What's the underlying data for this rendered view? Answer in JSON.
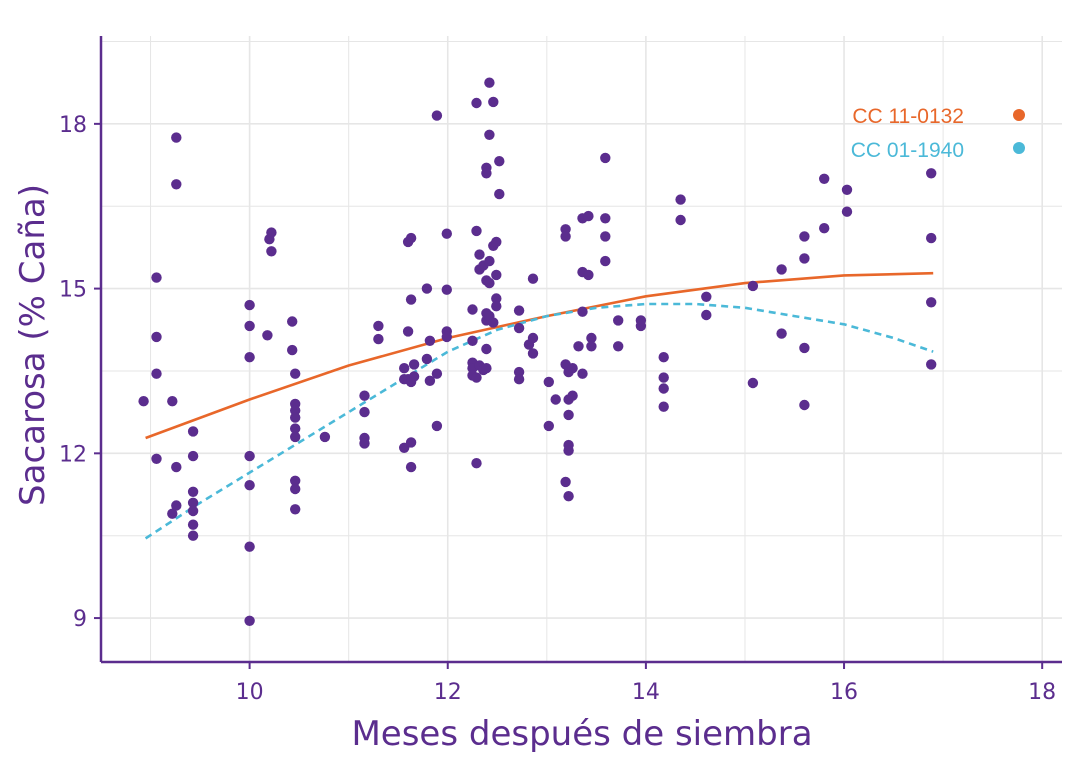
{
  "chart_data": {
    "type": "scatter",
    "xlabel": "Meses después de siembra",
    "ylabel": "Sacarosa (% Caña)",
    "xlim": [
      8.5,
      18.2
    ],
    "ylim": [
      8.2,
      19.6
    ],
    "xticks": [
      10,
      12,
      14,
      16,
      18
    ],
    "yticks": [
      9,
      12,
      15,
      18
    ],
    "x_minor_grid": [
      9,
      11,
      13,
      15,
      17
    ],
    "y_minor_grid": [
      10.5,
      13.5,
      16.5,
      19.5
    ],
    "grid": true,
    "legend_position": "top-right",
    "colors": {
      "axis": "#5b2d8e",
      "points": "#5b2d8e",
      "grid": "#e6e6e6"
    },
    "fit_lines": [
      {
        "name": "CC  11-0132",
        "color": "#e8672a",
        "style": "solid",
        "x": [
          8.95,
          10,
          11,
          12,
          13,
          14,
          15,
          16,
          16.9
        ],
        "y": [
          12.28,
          12.98,
          13.6,
          14.1,
          14.5,
          14.86,
          15.1,
          15.24,
          15.28
        ]
      },
      {
        "name": "CC 01-1940",
        "color": "#4bb9d8",
        "style": "dashed",
        "x": [
          8.95,
          9.5,
          10,
          10.5,
          11,
          11.5,
          12,
          12.5,
          13,
          13.5,
          14,
          14.5,
          15,
          15.5,
          16,
          16.5,
          16.9
        ],
        "y": [
          10.45,
          11.1,
          11.65,
          12.2,
          12.75,
          13.3,
          13.85,
          14.25,
          14.5,
          14.65,
          14.72,
          14.72,
          14.65,
          14.5,
          14.35,
          14.1,
          13.85
        ]
      }
    ],
    "points": [
      {
        "x": 8.93,
        "y": 12.95
      },
      {
        "x": 9.06,
        "y": 15.2
      },
      {
        "x": 9.06,
        "y": 14.12
      },
      {
        "x": 9.06,
        "y": 13.45
      },
      {
        "x": 9.06,
        "y": 11.9
      },
      {
        "x": 9.22,
        "y": 12.95
      },
      {
        "x": 9.22,
        "y": 10.9
      },
      {
        "x": 9.26,
        "y": 17.75
      },
      {
        "x": 9.26,
        "y": 16.9
      },
      {
        "x": 9.26,
        "y": 11.75
      },
      {
        "x": 9.26,
        "y": 11.05
      },
      {
        "x": 9.43,
        "y": 12.4
      },
      {
        "x": 9.43,
        "y": 11.95
      },
      {
        "x": 9.43,
        "y": 11.3
      },
      {
        "x": 9.43,
        "y": 11.1
      },
      {
        "x": 9.43,
        "y": 10.95
      },
      {
        "x": 9.43,
        "y": 10.7
      },
      {
        "x": 9.43,
        "y": 10.5
      },
      {
        "x": 10.0,
        "y": 14.7
      },
      {
        "x": 10.0,
        "y": 14.32
      },
      {
        "x": 10.0,
        "y": 13.75
      },
      {
        "x": 10.0,
        "y": 11.95
      },
      {
        "x": 10.0,
        "y": 11.42
      },
      {
        "x": 10.0,
        "y": 10.3
      },
      {
        "x": 10.0,
        "y": 8.95
      },
      {
        "x": 10.18,
        "y": 14.15
      },
      {
        "x": 10.2,
        "y": 15.9
      },
      {
        "x": 10.22,
        "y": 16.02
      },
      {
        "x": 10.22,
        "y": 15.68
      },
      {
        "x": 10.43,
        "y": 14.4
      },
      {
        "x": 10.43,
        "y": 13.88
      },
      {
        "x": 10.46,
        "y": 13.45
      },
      {
        "x": 10.46,
        "y": 12.9
      },
      {
        "x": 10.46,
        "y": 12.78
      },
      {
        "x": 10.46,
        "y": 12.65
      },
      {
        "x": 10.46,
        "y": 12.45
      },
      {
        "x": 10.46,
        "y": 12.3
      },
      {
        "x": 10.46,
        "y": 11.5
      },
      {
        "x": 10.46,
        "y": 11.35
      },
      {
        "x": 10.46,
        "y": 10.98
      },
      {
        "x": 10.76,
        "y": 12.3
      },
      {
        "x": 11.16,
        "y": 13.05
      },
      {
        "x": 11.16,
        "y": 12.75
      },
      {
        "x": 11.16,
        "y": 12.28
      },
      {
        "x": 11.16,
        "y": 12.18
      },
      {
        "x": 11.3,
        "y": 14.32
      },
      {
        "x": 11.3,
        "y": 14.08
      },
      {
        "x": 11.56,
        "y": 13.55
      },
      {
        "x": 11.56,
        "y": 13.35
      },
      {
        "x": 11.56,
        "y": 12.1
      },
      {
        "x": 11.6,
        "y": 15.85
      },
      {
        "x": 11.6,
        "y": 14.22
      },
      {
        "x": 11.6,
        "y": 13.35
      },
      {
        "x": 11.63,
        "y": 15.92
      },
      {
        "x": 11.63,
        "y": 14.8
      },
      {
        "x": 11.63,
        "y": 13.3
      },
      {
        "x": 11.63,
        "y": 12.2
      },
      {
        "x": 11.63,
        "y": 11.75
      },
      {
        "x": 11.66,
        "y": 13.62
      },
      {
        "x": 11.66,
        "y": 13.4
      },
      {
        "x": 11.79,
        "y": 15.0
      },
      {
        "x": 11.79,
        "y": 13.72
      },
      {
        "x": 11.82,
        "y": 14.05
      },
      {
        "x": 11.82,
        "y": 13.32
      },
      {
        "x": 11.89,
        "y": 18.15
      },
      {
        "x": 11.89,
        "y": 13.45
      },
      {
        "x": 11.89,
        "y": 12.5
      },
      {
        "x": 11.99,
        "y": 16.0
      },
      {
        "x": 11.99,
        "y": 14.98
      },
      {
        "x": 11.99,
        "y": 14.22
      },
      {
        "x": 11.99,
        "y": 14.12
      },
      {
        "x": 12.25,
        "y": 14.62
      },
      {
        "x": 12.25,
        "y": 14.05
      },
      {
        "x": 12.25,
        "y": 13.65
      },
      {
        "x": 12.25,
        "y": 13.55
      },
      {
        "x": 12.25,
        "y": 13.42
      },
      {
        "x": 12.29,
        "y": 18.38
      },
      {
        "x": 12.29,
        "y": 16.05
      },
      {
        "x": 12.29,
        "y": 13.38
      },
      {
        "x": 12.29,
        "y": 11.82
      },
      {
        "x": 12.32,
        "y": 15.62
      },
      {
        "x": 12.32,
        "y": 15.35
      },
      {
        "x": 12.32,
        "y": 13.6
      },
      {
        "x": 12.36,
        "y": 15.42
      },
      {
        "x": 12.36,
        "y": 13.52
      },
      {
        "x": 12.39,
        "y": 17.2
      },
      {
        "x": 12.39,
        "y": 17.1
      },
      {
        "x": 12.39,
        "y": 15.15
      },
      {
        "x": 12.39,
        "y": 14.55
      },
      {
        "x": 12.39,
        "y": 14.42
      },
      {
        "x": 12.39,
        "y": 13.9
      },
      {
        "x": 12.39,
        "y": 13.55
      },
      {
        "x": 12.42,
        "y": 18.75
      },
      {
        "x": 12.42,
        "y": 17.8
      },
      {
        "x": 12.42,
        "y": 15.5
      },
      {
        "x": 12.42,
        "y": 15.1
      },
      {
        "x": 12.42,
        "y": 14.5
      },
      {
        "x": 12.46,
        "y": 18.4
      },
      {
        "x": 12.46,
        "y": 15.78
      },
      {
        "x": 12.46,
        "y": 14.38
      },
      {
        "x": 12.49,
        "y": 15.85
      },
      {
        "x": 12.49,
        "y": 15.25
      },
      {
        "x": 12.49,
        "y": 14.82
      },
      {
        "x": 12.49,
        "y": 14.68
      },
      {
        "x": 12.52,
        "y": 17.32
      },
      {
        "x": 12.52,
        "y": 16.72
      },
      {
        "x": 12.72,
        "y": 14.6
      },
      {
        "x": 12.72,
        "y": 14.28
      },
      {
        "x": 12.72,
        "y": 13.48
      },
      {
        "x": 12.72,
        "y": 13.35
      },
      {
        "x": 12.82,
        "y": 13.98
      },
      {
        "x": 12.86,
        "y": 15.18
      },
      {
        "x": 12.86,
        "y": 14.1
      },
      {
        "x": 12.86,
        "y": 13.82
      },
      {
        "x": 13.02,
        "y": 13.3
      },
      {
        "x": 13.02,
        "y": 12.5
      },
      {
        "x": 13.09,
        "y": 12.98
      },
      {
        "x": 13.19,
        "y": 16.08
      },
      {
        "x": 13.19,
        "y": 15.95
      },
      {
        "x": 13.19,
        "y": 13.62
      },
      {
        "x": 13.19,
        "y": 11.48
      },
      {
        "x": 13.22,
        "y": 13.48
      },
      {
        "x": 13.22,
        "y": 12.98
      },
      {
        "x": 13.22,
        "y": 12.7
      },
      {
        "x": 13.22,
        "y": 12.15
      },
      {
        "x": 13.22,
        "y": 12.05
      },
      {
        "x": 13.22,
        "y": 11.22
      },
      {
        "x": 13.26,
        "y": 13.55
      },
      {
        "x": 13.26,
        "y": 13.05
      },
      {
        "x": 13.32,
        "y": 13.95
      },
      {
        "x": 13.36,
        "y": 16.28
      },
      {
        "x": 13.36,
        "y": 15.3
      },
      {
        "x": 13.36,
        "y": 14.58
      },
      {
        "x": 13.36,
        "y": 13.45
      },
      {
        "x": 13.42,
        "y": 16.32
      },
      {
        "x": 13.42,
        "y": 15.25
      },
      {
        "x": 13.45,
        "y": 14.1
      },
      {
        "x": 13.45,
        "y": 13.95
      },
      {
        "x": 13.59,
        "y": 17.38
      },
      {
        "x": 13.59,
        "y": 16.28
      },
      {
        "x": 13.59,
        "y": 15.95
      },
      {
        "x": 13.59,
        "y": 15.5
      },
      {
        "x": 13.72,
        "y": 14.42
      },
      {
        "x": 13.72,
        "y": 13.95
      },
      {
        "x": 13.95,
        "y": 14.42
      },
      {
        "x": 13.95,
        "y": 14.32
      },
      {
        "x": 14.18,
        "y": 13.75
      },
      {
        "x": 14.18,
        "y": 13.38
      },
      {
        "x": 14.18,
        "y": 13.18
      },
      {
        "x": 14.18,
        "y": 12.85
      },
      {
        "x": 14.35,
        "y": 16.62
      },
      {
        "x": 14.35,
        "y": 16.25
      },
      {
        "x": 14.61,
        "y": 14.85
      },
      {
        "x": 14.61,
        "y": 14.52
      },
      {
        "x": 15.08,
        "y": 15.05
      },
      {
        "x": 15.08,
        "y": 13.28
      },
      {
        "x": 15.37,
        "y": 15.35
      },
      {
        "x": 15.37,
        "y": 14.18
      },
      {
        "x": 15.6,
        "y": 15.95
      },
      {
        "x": 15.6,
        "y": 15.55
      },
      {
        "x": 15.6,
        "y": 13.92
      },
      {
        "x": 15.6,
        "y": 12.88
      },
      {
        "x": 15.8,
        "y": 17.0
      },
      {
        "x": 15.8,
        "y": 16.1
      },
      {
        "x": 16.03,
        "y": 16.8
      },
      {
        "x": 16.03,
        "y": 16.4
      },
      {
        "x": 16.88,
        "y": 17.1
      },
      {
        "x": 16.88,
        "y": 15.92
      },
      {
        "x": 16.88,
        "y": 14.75
      },
      {
        "x": 16.88,
        "y": 13.62
      }
    ]
  }
}
